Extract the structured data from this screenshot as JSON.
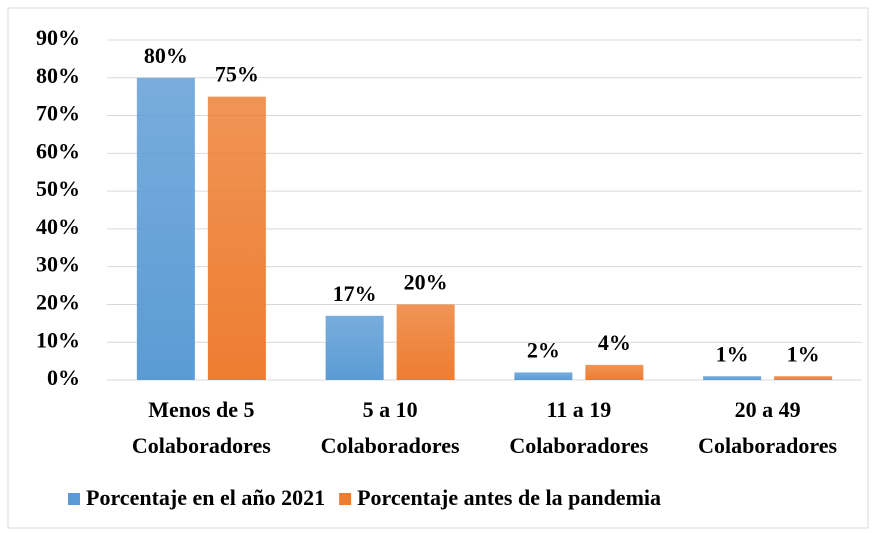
{
  "chart_data": {
    "type": "bar",
    "categories": [
      [
        "Menos de 5",
        "Colaboradores"
      ],
      [
        "5 a 10",
        "Colaboradores"
      ],
      [
        "11 a 19",
        "Colaboradores"
      ],
      [
        "20 a 49",
        "Colaboradores"
      ]
    ],
    "series": [
      {
        "name": "Porcentaje en el año 2021",
        "color": "#5b9bd5",
        "values": [
          80,
          17,
          2,
          1
        ],
        "value_labels": [
          "80%",
          "17%",
          "2%",
          "1%"
        ]
      },
      {
        "name": "Porcentaje antes de la pandemia",
        "color": "#ed7d31",
        "values": [
          75,
          20,
          4,
          1
        ],
        "value_labels": [
          "75%",
          "20%",
          "4%",
          "1%"
        ]
      }
    ],
    "ylim": [
      0,
      90
    ],
    "yticks": [
      {
        "value": 0,
        "label": "0%"
      },
      {
        "value": 10,
        "label": "10%"
      },
      {
        "value": 20,
        "label": "20%"
      },
      {
        "value": 30,
        "label": "30%"
      },
      {
        "value": 40,
        "label": "40%"
      },
      {
        "value": 50,
        "label": "50%"
      },
      {
        "value": 60,
        "label": "60%"
      },
      {
        "value": 70,
        "label": "70%"
      },
      {
        "value": 80,
        "label": "80%"
      },
      {
        "value": 90,
        "label": "90%"
      }
    ],
    "grid": true,
    "legend": "bottom"
  }
}
